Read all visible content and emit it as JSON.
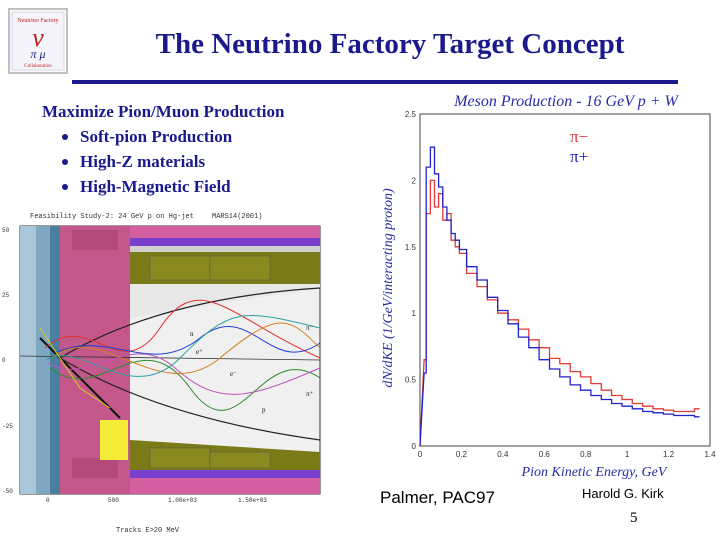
{
  "slide": {
    "title": "The Neutrino Factory Target Concept",
    "intro": "Maximize Pion/Muon Production",
    "bullets": [
      "Soft-pion Production",
      "High-Z materials",
      "High-Magnetic Field"
    ],
    "footer": {
      "citation": "Palmer, PAC97",
      "author": "Harold G. Kirk",
      "page_number": "5"
    },
    "colors": {
      "title_blue": "#1a1a8c",
      "chart_title": "#2a2aa8"
    }
  },
  "logo": {
    "top_text": "Neutrino Factory",
    "bottom_text": "Collaboration",
    "symbol": "ν",
    "subsymbol": "π μ"
  },
  "simulation": {
    "header": "Feasibility Study-2: 24 GeV p on Hg-jet",
    "code_label": "MARS14(2001)",
    "y_ticks": [
      "50",
      "25",
      "0",
      "-25",
      "-50"
    ],
    "x_ticks": [
      "0",
      "500",
      "1.00e+03",
      "1.50e+03"
    ],
    "footer": "Tracks E>20 MeV",
    "particle_labels": [
      "π⁻",
      "e⁺",
      "π⁺",
      "e⁻",
      "p",
      "n"
    ]
  },
  "chart_data": {
    "type": "line",
    "title": "Meson Production - 16 GeV p + W",
    "xlabel": "Pion Kinetic Energy, GeV",
    "ylabel": "dN/dKE (1/GeV/interacting proton)",
    "xlim": [
      0,
      1.4
    ],
    "ylim": [
      0,
      2.5
    ],
    "x_ticks": [
      "0",
      "0.2",
      "0.4",
      "0.6",
      "0.8",
      "1",
      "1.2",
      "1.4"
    ],
    "y_ticks": [
      "0",
      "0.5",
      "1",
      "1.5",
      "2",
      "2.5"
    ],
    "legend_position": "top-right",
    "series": [
      {
        "name": "π−",
        "color": "#e33a3a",
        "x": [
          0.02,
          0.04,
          0.06,
          0.08,
          0.1,
          0.12,
          0.14,
          0.16,
          0.18,
          0.2,
          0.25,
          0.3,
          0.35,
          0.4,
          0.45,
          0.5,
          0.55,
          0.6,
          0.65,
          0.7,
          0.75,
          0.8,
          0.85,
          0.9,
          0.95,
          1.0,
          1.05,
          1.1,
          1.15,
          1.2,
          1.25,
          1.3,
          1.35
        ],
        "y": [
          0.65,
          1.75,
          2.0,
          1.8,
          1.9,
          1.7,
          1.75,
          1.55,
          1.5,
          1.45,
          1.3,
          1.2,
          1.1,
          1.0,
          0.95,
          0.88,
          0.8,
          0.74,
          0.66,
          0.62,
          0.56,
          0.52,
          0.47,
          0.42,
          0.38,
          0.35,
          0.32,
          0.3,
          0.28,
          0.27,
          0.26,
          0.26,
          0.28
        ]
      },
      {
        "name": "π+",
        "color": "#2222cc",
        "x": [
          0.02,
          0.04,
          0.06,
          0.08,
          0.1,
          0.12,
          0.14,
          0.16,
          0.18,
          0.2,
          0.25,
          0.3,
          0.35,
          0.4,
          0.45,
          0.5,
          0.55,
          0.6,
          0.65,
          0.7,
          0.75,
          0.8,
          0.85,
          0.9,
          0.95,
          1.0,
          1.05,
          1.1,
          1.15,
          1.2,
          1.25,
          1.3,
          1.35
        ],
        "y": [
          0.55,
          2.1,
          2.25,
          2.05,
          1.95,
          1.8,
          1.7,
          1.6,
          1.55,
          1.48,
          1.35,
          1.25,
          1.12,
          1.02,
          0.92,
          0.82,
          0.74,
          0.65,
          0.58,
          0.52,
          0.46,
          0.42,
          0.38,
          0.35,
          0.32,
          0.3,
          0.28,
          0.26,
          0.25,
          0.24,
          0.23,
          0.23,
          0.22
        ]
      }
    ]
  }
}
